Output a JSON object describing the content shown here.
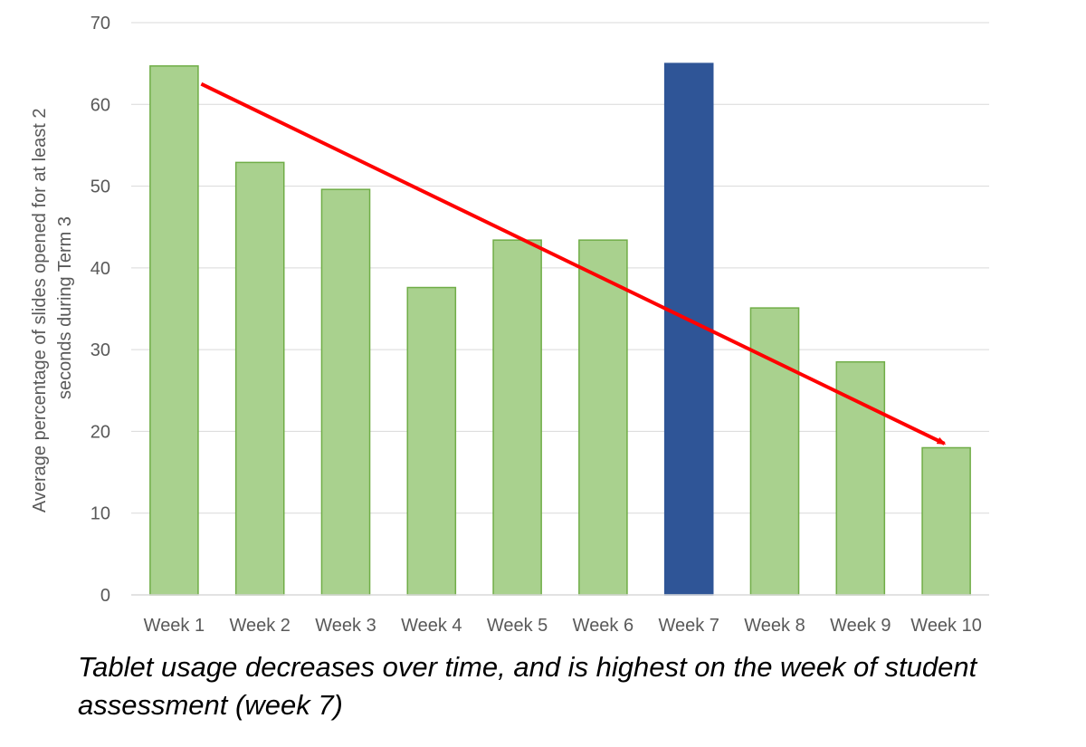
{
  "chart_data": {
    "type": "bar",
    "categories": [
      "Week 1",
      "Week 2",
      "Week 3",
      "Week 4",
      "Week 5",
      "Week 6",
      "Week 7",
      "Week 8",
      "Week 9",
      "Week 10"
    ],
    "values": [
      64.7,
      52.9,
      49.6,
      37.6,
      43.4,
      43.4,
      65.0,
      35.1,
      28.5,
      18.0
    ],
    "ylabel_lines": [
      "Average percentage of slides opened for at least 2",
      "seconds during Term 3"
    ],
    "ylim": [
      0,
      70
    ],
    "yticks": [
      0,
      10,
      20,
      30,
      40,
      50,
      60,
      70
    ],
    "grid": true,
    "highlight_index": 6,
    "colors": {
      "bar": "#a9d18e",
      "bar_edge": "#70ad47",
      "highlight": "#2f5597",
      "trend": "#ff0000",
      "grid": "#d9d9d9",
      "axis_text": "#595959"
    },
    "trend_arrow": {
      "from": {
        "category": "Week 1",
        "value": 62.5
      },
      "to": {
        "category": "Week 10",
        "value": 18.5
      }
    }
  },
  "caption": "Tablet usage decreases over time, and is highest on the week of student assessment (week 7)"
}
